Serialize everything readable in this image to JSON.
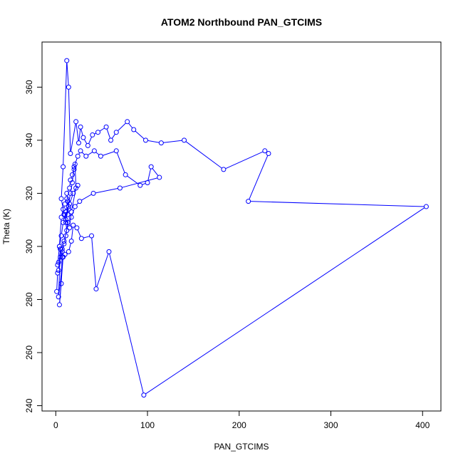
{
  "chart_data": {
    "type": "line",
    "title": "ATOM2 Northbound PAN_GTCIMS",
    "xlabel": "PAN_GTCIMS",
    "ylabel": "Theta (K)",
    "xlim": [
      -15,
      420
    ],
    "ylim": [
      238,
      377
    ],
    "x_ticks": [
      0,
      100,
      200,
      300,
      400
    ],
    "y_ticks": [
      240,
      260,
      280,
      300,
      320,
      340,
      360
    ],
    "grid": false,
    "legend": "none",
    "series_color": "#0000ff",
    "marker": "open-circle",
    "series": [
      {
        "name": "",
        "x": [
          1,
          2,
          3,
          5,
          3,
          8,
          4,
          6,
          7,
          9,
          12,
          11,
          10,
          14,
          13,
          12,
          15,
          16,
          18,
          20,
          21,
          22,
          17,
          15,
          9,
          6,
          8,
          12,
          14,
          16,
          22,
          25,
          27,
          30,
          35,
          40,
          46,
          55,
          60,
          66,
          78,
          85,
          98,
          115,
          140,
          183,
          228,
          232,
          210,
          404,
          96,
          58,
          44,
          39,
          28,
          23,
          19,
          17,
          14,
          10,
          7,
          5,
          4,
          6,
          8,
          10,
          12,
          14,
          13,
          11,
          16,
          18,
          20,
          24,
          27,
          33,
          42,
          49,
          66,
          76,
          92,
          100,
          104,
          113,
          70,
          41,
          26,
          21,
          17,
          13,
          11,
          9,
          7,
          5,
          3,
          2,
          4,
          6,
          8,
          11,
          15,
          19,
          24
        ],
        "y": [
          283,
          290,
          291,
          299,
          281,
          296,
          278,
          286,
          299,
          302,
          306,
          309,
          312,
          314,
          317,
          320,
          322,
          325,
          327,
          329,
          331,
          322,
          313,
          307,
          312,
          318,
          330,
          370,
          360,
          335,
          347,
          339,
          345,
          341,
          338,
          342,
          343,
          345,
          340,
          343,
          347,
          344,
          340,
          339,
          340,
          329,
          336,
          335,
          317,
          315,
          244,
          298,
          284,
          304,
          303,
          307,
          308,
          302,
          298,
          297,
          296,
          299,
          300,
          311,
          314,
          316,
          318,
          315,
          312,
          310,
          320,
          324,
          330,
          334,
          336,
          334,
          336,
          334,
          336,
          327,
          323,
          324,
          330,
          326,
          322,
          320,
          317,
          315,
          311,
          309,
          304,
          301,
          298,
          296,
          294,
          293,
          300,
          304,
          309,
          313,
          316,
          320,
          323
        ]
      }
    ]
  }
}
